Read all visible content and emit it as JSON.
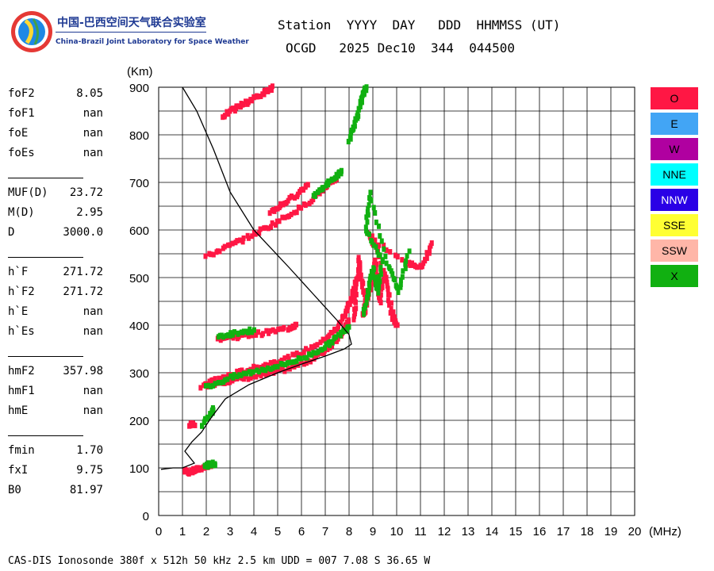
{
  "logo": {
    "name_cn": "中国-巴西空间天气联合实验室",
    "name_en": "China-Brazil Joint Laboratory for Space Weather"
  },
  "header": {
    "line1": "Station  YYYY  DAY   DDD  HHMMSS (UT)",
    "line2": "OCGD   2025 Dec10  344  044500"
  },
  "parameters": [
    [
      {
        "k": "foF2",
        "v": "8.05"
      },
      {
        "k": "foF1",
        "v": "nan"
      },
      {
        "k": "foE",
        "v": "nan"
      },
      {
        "k": "foEs",
        "v": "nan"
      }
    ],
    [
      {
        "k": "MUF(D)",
        "v": "23.72"
      },
      {
        "k": "M(D)",
        "v": "2.95"
      },
      {
        "k": "D",
        "v": "3000.0"
      }
    ],
    [
      {
        "k": "h`F",
        "v": "271.72"
      },
      {
        "k": "h`F2",
        "v": "271.72"
      },
      {
        "k": "h`E",
        "v": "nan"
      },
      {
        "k": "h`Es",
        "v": "nan"
      }
    ],
    [
      {
        "k": "hmF2",
        "v": "357.98"
      },
      {
        "k": "hmF1",
        "v": "nan"
      },
      {
        "k": "hmE",
        "v": "nan"
      }
    ],
    [
      {
        "k": "fmin",
        "v": "1.70"
      },
      {
        "k": "fxI",
        "v": "9.75"
      },
      {
        "k": "B0",
        "v": "81.97"
      }
    ]
  ],
  "legend": [
    {
      "label": "O",
      "color": "#ff1744"
    },
    {
      "label": "E",
      "color": "#42a5f5"
    },
    {
      "label": "W",
      "color": "#b000a0"
    },
    {
      "label": "NNE",
      "color": "#00ffff"
    },
    {
      "label": "NNW",
      "color": "#2a00e6"
    },
    {
      "label": "SSE",
      "color": "#ffff33"
    },
    {
      "label": "SSW",
      "color": "#ffb6a8"
    },
    {
      "label": "X",
      "color": "#11b011"
    }
  ],
  "footer": "CAS-DIS Ionosonde 380f x 512h 50 kHz 2.5 km UDD = 007 7.08 S 36.65 W",
  "chart_data": {
    "type": "scatter",
    "xlabel": "(MHz)",
    "ylabel": "(Km)",
    "xlim": [
      0,
      20
    ],
    "ylim": [
      0,
      900
    ],
    "x_ticks": [
      0,
      1,
      2,
      3,
      4,
      5,
      6,
      7,
      8,
      9,
      10,
      11,
      12,
      13,
      14,
      15,
      16,
      17,
      18,
      19,
      20
    ],
    "y_ticks": [
      0,
      100,
      200,
      300,
      400,
      500,
      600,
      700,
      800,
      900
    ],
    "grid": true,
    "legend_position": "right",
    "traces": [
      {
        "series": "O",
        "color": "#ff1744",
        "points": [
          [
            1.1,
            95
          ],
          [
            1.3,
            92
          ],
          [
            1.6,
            97
          ],
          [
            1.9,
            102
          ],
          [
            2.2,
            108
          ]
        ]
      },
      {
        "series": "O",
        "color": "#ff1744",
        "points": [
          [
            1.3,
            190
          ],
          [
            1.5,
            192
          ]
        ]
      },
      {
        "series": "O",
        "color": "#ff1744",
        "points": [
          [
            1.8,
            272
          ],
          [
            2.5,
            280
          ],
          [
            3.5,
            288
          ],
          [
            4.5,
            297
          ],
          [
            5.5,
            310
          ],
          [
            6.5,
            330
          ],
          [
            7.2,
            355
          ],
          [
            7.7,
            385
          ],
          [
            8.0,
            410
          ]
        ]
      },
      {
        "series": "O",
        "color": "#ff1744",
        "points": [
          [
            2.0,
            280
          ],
          [
            3.0,
            296
          ],
          [
            4.0,
            310
          ],
          [
            5.0,
            325
          ],
          [
            6.0,
            342
          ],
          [
            7.0,
            370
          ],
          [
            7.5,
            395
          ],
          [
            7.9,
            430
          ],
          [
            8.1,
            460
          ],
          [
            8.3,
            490
          ],
          [
            8.5,
            520
          ]
        ]
      },
      {
        "series": "O",
        "color": "#ff1744",
        "points": [
          [
            2.5,
            372
          ],
          [
            3.5,
            378
          ],
          [
            4.5,
            385
          ],
          [
            5.5,
            395
          ],
          [
            5.8,
            402
          ]
        ]
      },
      {
        "series": "O",
        "color": "#ff1744",
        "points": [
          [
            2.0,
            545
          ],
          [
            3.0,
            568
          ],
          [
            4.0,
            592
          ],
          [
            5.0,
            618
          ],
          [
            6.0,
            648
          ],
          [
            7.0,
            688
          ],
          [
            7.5,
            710
          ]
        ]
      },
      {
        "series": "O",
        "color": "#ff1744",
        "points": [
          [
            4.7,
            638
          ],
          [
            5.2,
            655
          ],
          [
            5.8,
            675
          ],
          [
            6.3,
            698
          ]
        ]
      },
      {
        "series": "O",
        "color": "#ff1744",
        "points": [
          [
            2.7,
            840
          ],
          [
            3.3,
            858
          ],
          [
            3.8,
            872
          ],
          [
            4.4,
            888
          ],
          [
            4.8,
            900
          ]
        ]
      },
      {
        "series": "O",
        "color": "#ff1744",
        "points": [
          [
            8.2,
            410
          ],
          [
            8.3,
            470
          ],
          [
            8.4,
            540
          ],
          [
            8.5,
            500
          ],
          [
            8.7,
            450
          ],
          [
            8.6,
            420
          ],
          [
            8.9,
            480
          ],
          [
            9.1,
            540
          ],
          [
            9.3,
            450
          ],
          [
            9.5,
            510
          ],
          [
            9.8,
            420
          ],
          [
            10.0,
            400
          ],
          [
            9.2,
            560
          ],
          [
            8.8,
            590
          ],
          [
            10.4,
            530
          ],
          [
            11.1,
            525
          ],
          [
            11.5,
            575
          ]
        ]
      },
      {
        "series": "X",
        "color": "#11b011",
        "points": [
          [
            1.9,
            102
          ],
          [
            2.2,
            110
          ],
          [
            2.4,
            108
          ]
        ]
      },
      {
        "series": "X",
        "color": "#11b011",
        "points": [
          [
            1.8,
            190
          ],
          [
            2.2,
            215
          ],
          [
            2.3,
            228
          ]
        ]
      },
      {
        "series": "X",
        "color": "#11b011",
        "points": [
          [
            2.0,
            270
          ],
          [
            3.0,
            290
          ],
          [
            4.0,
            303
          ],
          [
            5.0,
            315
          ],
          [
            6.0,
            330
          ],
          [
            7.0,
            355
          ],
          [
            7.6,
            380
          ],
          [
            8.0,
            400
          ]
        ]
      },
      {
        "series": "X",
        "color": "#11b011",
        "points": [
          [
            2.5,
            378
          ],
          [
            3.3,
            385
          ],
          [
            4.0,
            390
          ]
        ]
      },
      {
        "series": "X",
        "color": "#11b011",
        "points": [
          [
            6.5,
            670
          ],
          [
            7.0,
            695
          ],
          [
            7.5,
            715
          ],
          [
            7.7,
            725
          ]
        ]
      },
      {
        "series": "X",
        "color": "#11b011",
        "points": [
          [
            8.0,
            790
          ],
          [
            8.2,
            820
          ],
          [
            8.4,
            850
          ],
          [
            8.6,
            885
          ],
          [
            8.7,
            900
          ]
        ]
      },
      {
        "series": "X",
        "color": "#11b011",
        "points": [
          [
            8.6,
            420
          ],
          [
            8.8,
            470
          ],
          [
            9.0,
            520
          ],
          [
            9.2,
            470
          ],
          [
            9.4,
            540
          ],
          [
            8.7,
            600
          ],
          [
            8.9,
            680
          ],
          [
            9.6,
            530
          ],
          [
            10.1,
            470
          ],
          [
            10.5,
            555
          ]
        ]
      }
    ],
    "profile": [
      [
        0.1,
        97
      ],
      [
        0.6,
        100
      ],
      [
        1.0,
        100
      ],
      [
        1.5,
        110
      ],
      [
        1.1,
        135
      ],
      [
        1.4,
        155
      ],
      [
        1.8,
        175
      ],
      [
        2.2,
        205
      ],
      [
        2.8,
        245
      ],
      [
        3.8,
        275
      ],
      [
        5.0,
        300
      ],
      [
        6.0,
        318
      ],
      [
        7.0,
        335
      ],
      [
        7.8,
        350
      ],
      [
        8.1,
        360
      ],
      [
        8.0,
        380
      ],
      [
        7.5,
        410
      ],
      [
        6.5,
        465
      ],
      [
        5.5,
        520
      ],
      [
        4.0,
        600
      ],
      [
        3.0,
        680
      ],
      [
        2.3,
        770
      ],
      [
        1.6,
        850
      ],
      [
        1.0,
        900
      ]
    ]
  }
}
